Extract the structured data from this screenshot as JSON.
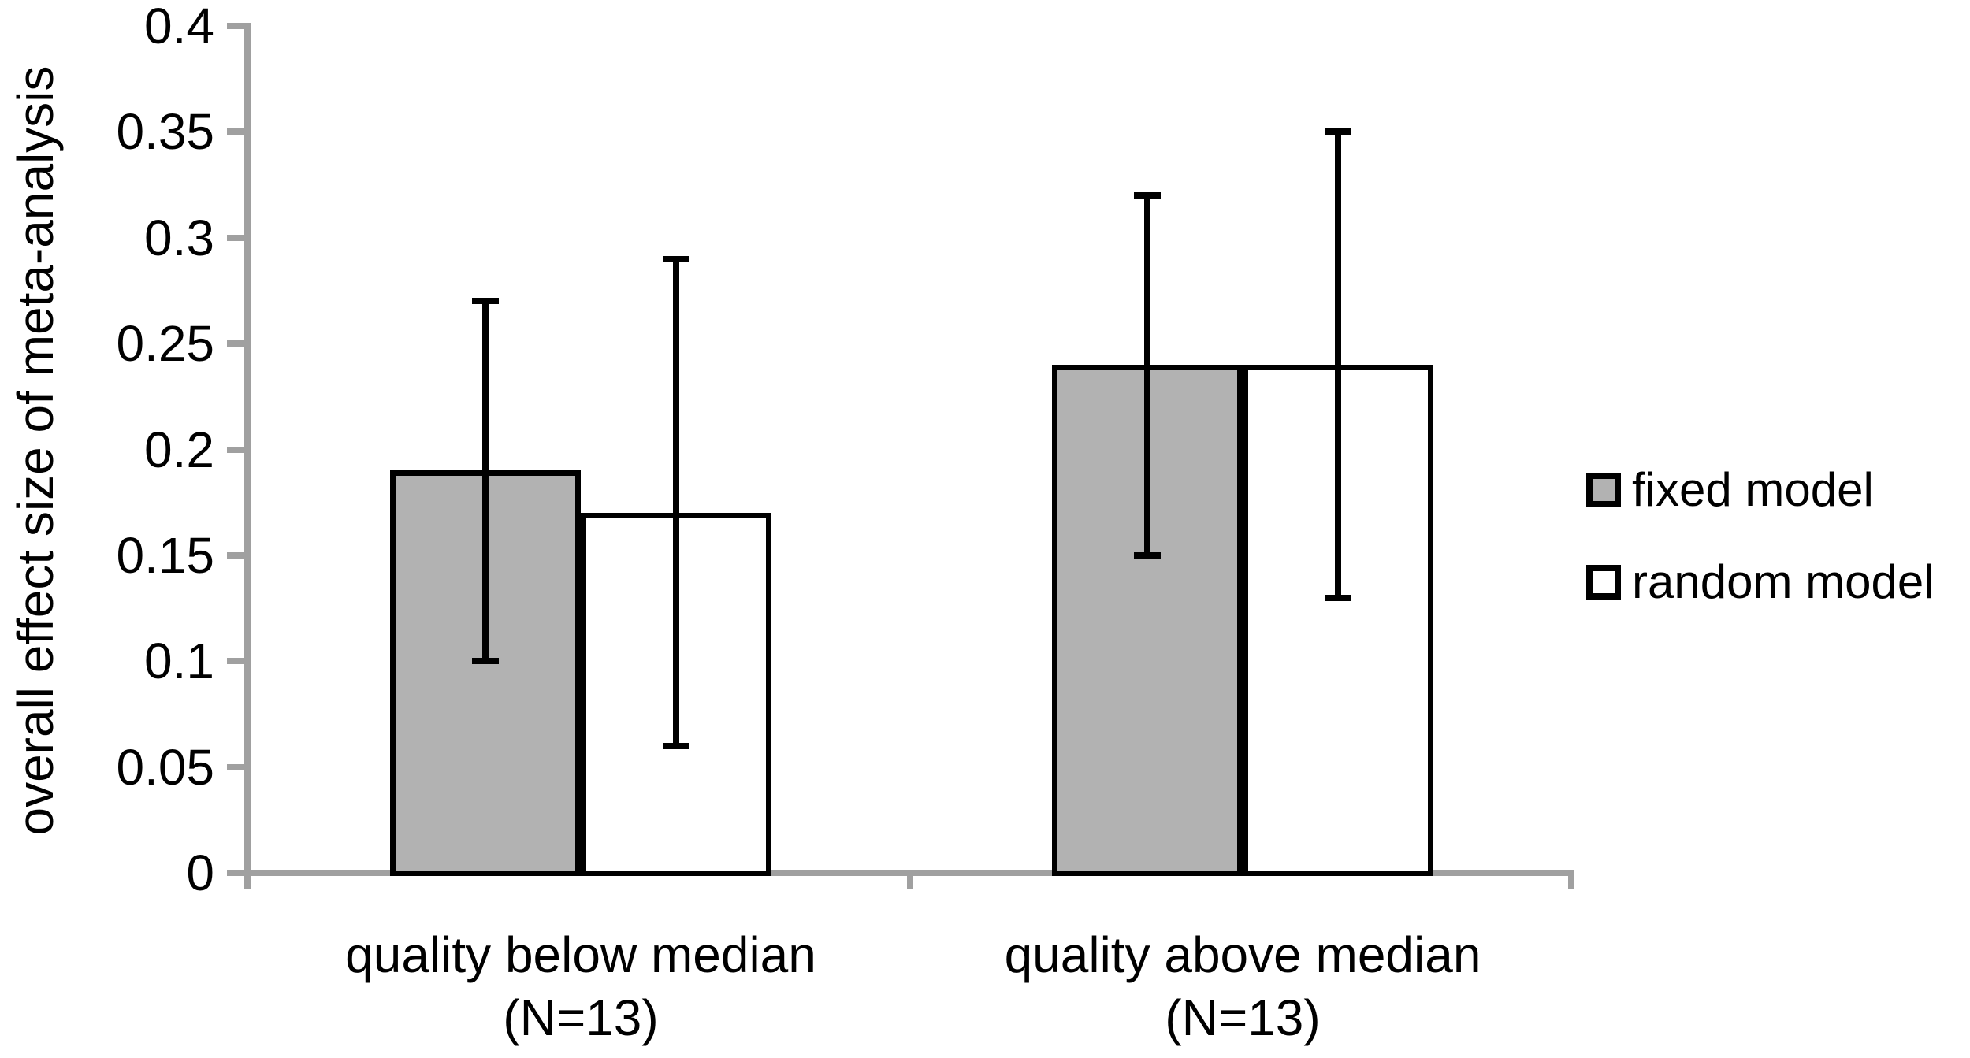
{
  "chart_data": {
    "type": "bar",
    "title": "",
    "xlabel": "",
    "ylabel": "overall effect size of meta-analysis",
    "ylim": [
      0,
      0.4
    ],
    "ytick_step": 0.05,
    "yticks": [
      "0.4",
      "0.35",
      "0.3",
      "0.25",
      "0.2",
      "0.15",
      "0.1",
      "0.05",
      "0"
    ],
    "grid": false,
    "legend_position": "right",
    "categories": [
      {
        "label_line1": "quality below median",
        "label_line2": "(N=13)"
      },
      {
        "label_line1": "quality above median",
        "label_line2": "(N=13)"
      }
    ],
    "series": [
      {
        "name": "fixed model",
        "fill": "#b2b2b2",
        "values": [
          0.19,
          0.24
        ],
        "error_low": [
          0.1,
          0.15
        ],
        "error_high": [
          0.27,
          0.32
        ]
      },
      {
        "name": "random model",
        "fill": "#ffffff",
        "values": [
          0.17,
          0.24
        ],
        "error_low": [
          0.06,
          0.13
        ],
        "error_high": [
          0.29,
          0.35
        ]
      }
    ]
  },
  "colors": {
    "axis": "#a0a0a0",
    "bar_border": "#000000",
    "error_bar": "#000000",
    "text": "#000000",
    "background": "#ffffff"
  }
}
